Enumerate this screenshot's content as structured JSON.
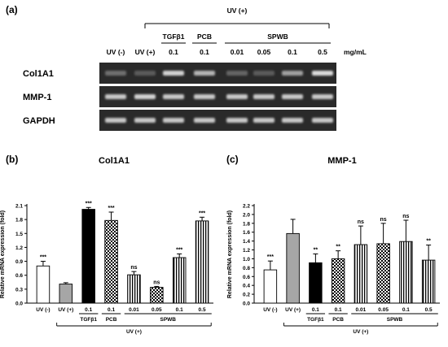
{
  "figure": {
    "panel_a": {
      "letter": "(a)",
      "uv_plus_label": "UV (+)",
      "group_labels": {
        "tgf": "TGFβ1",
        "pcb": "PCB",
        "spwb": "SPWB"
      },
      "lanes": [
        {
          "top": "UV (-)",
          "bottom": ""
        },
        {
          "top": "UV (+)",
          "bottom": ""
        },
        {
          "top": "",
          "bottom": "0.1"
        },
        {
          "top": "",
          "bottom": "0.1"
        },
        {
          "top": "",
          "bottom": "0.01"
        },
        {
          "top": "",
          "bottom": "0.05"
        },
        {
          "top": "",
          "bottom": "0.1"
        },
        {
          "top": "",
          "bottom": "0.5"
        }
      ],
      "unit": "mg/mL",
      "rows": [
        "Col1A1",
        "MMP-1",
        "GAPDH"
      ],
      "band_intensity": {
        "Col1A1": [
          0.35,
          0.25,
          0.85,
          0.7,
          0.3,
          0.25,
          0.6,
          0.9
        ],
        "MMP-1": [
          0.8,
          0.85,
          0.8,
          0.8,
          0.8,
          0.8,
          0.8,
          0.8
        ],
        "GAPDH": [
          0.8,
          0.8,
          0.8,
          0.8,
          0.8,
          0.8,
          0.8,
          0.8
        ]
      }
    }
  },
  "chart_data": [
    {
      "panel": "(b)",
      "type": "bar",
      "title": "Col1A1",
      "ylabel": "Relative mRNA expression (fold)",
      "ylim": [
        0,
        2.1
      ],
      "yticks": [
        "0.0",
        "0.3",
        "0.6",
        "0.9",
        "1.2",
        "1.5",
        "1.8",
        "2.1"
      ],
      "categories": [
        "UV (-)",
        "UV (+)",
        "0.1",
        "0.1",
        "0.01",
        "0.05",
        "0.1",
        "0.5"
      ],
      "values": [
        0.8,
        0.41,
        2.02,
        1.78,
        0.61,
        0.34,
        0.98,
        1.77
      ],
      "errors": [
        0.1,
        0.03,
        0.04,
        0.18,
        0.07,
        0.02,
        0.08,
        0.08
      ],
      "significance": [
        "***",
        "",
        "***",
        "***",
        "ns",
        "ns",
        "***",
        "***"
      ],
      "fills": [
        "white",
        "gray",
        "black",
        "check",
        "vstripe",
        "check",
        "vstripe",
        "vstripe"
      ],
      "group_labels": {
        "tgf": "TGFβ1",
        "pcb": "PCB",
        "spwb": "SPWB",
        "uv_plus": "UV (+)"
      }
    },
    {
      "panel": "(c)",
      "type": "bar",
      "title": "MMP-1",
      "ylabel": "Relative mRNA expression (fold)",
      "ylim": [
        0,
        2.2
      ],
      "yticks": [
        "0.0",
        "0.2",
        "0.4",
        "0.6",
        "0.8",
        "1.0",
        "1.2",
        "1.4",
        "1.6",
        "1.8",
        "2.0",
        "2.2"
      ],
      "categories": [
        "UV (-)",
        "UV (+)",
        "0.1",
        "0.1",
        "0.01",
        "0.05",
        "0.1",
        "0.5"
      ],
      "values": [
        0.75,
        1.57,
        0.91,
        1.0,
        1.32,
        1.34,
        1.39,
        0.97
      ],
      "errors": [
        0.2,
        0.32,
        0.2,
        0.18,
        0.42,
        0.46,
        0.48,
        0.34
      ],
      "significance": [
        "***",
        "",
        "**",
        "**",
        "ns",
        "ns",
        "ns",
        "**"
      ],
      "fills": [
        "white",
        "gray",
        "black",
        "check",
        "vstripe",
        "check",
        "vstripe",
        "vstripe"
      ],
      "group_labels": {
        "tgf": "TGFβ1",
        "pcb": "PCB",
        "spwb": "SPWB",
        "uv_plus": "UV (+)"
      }
    }
  ],
  "colors": {
    "bar_gray": "#a6a6a6",
    "gel_bg": "#2a2a2a",
    "band": "#f0f0f0"
  }
}
